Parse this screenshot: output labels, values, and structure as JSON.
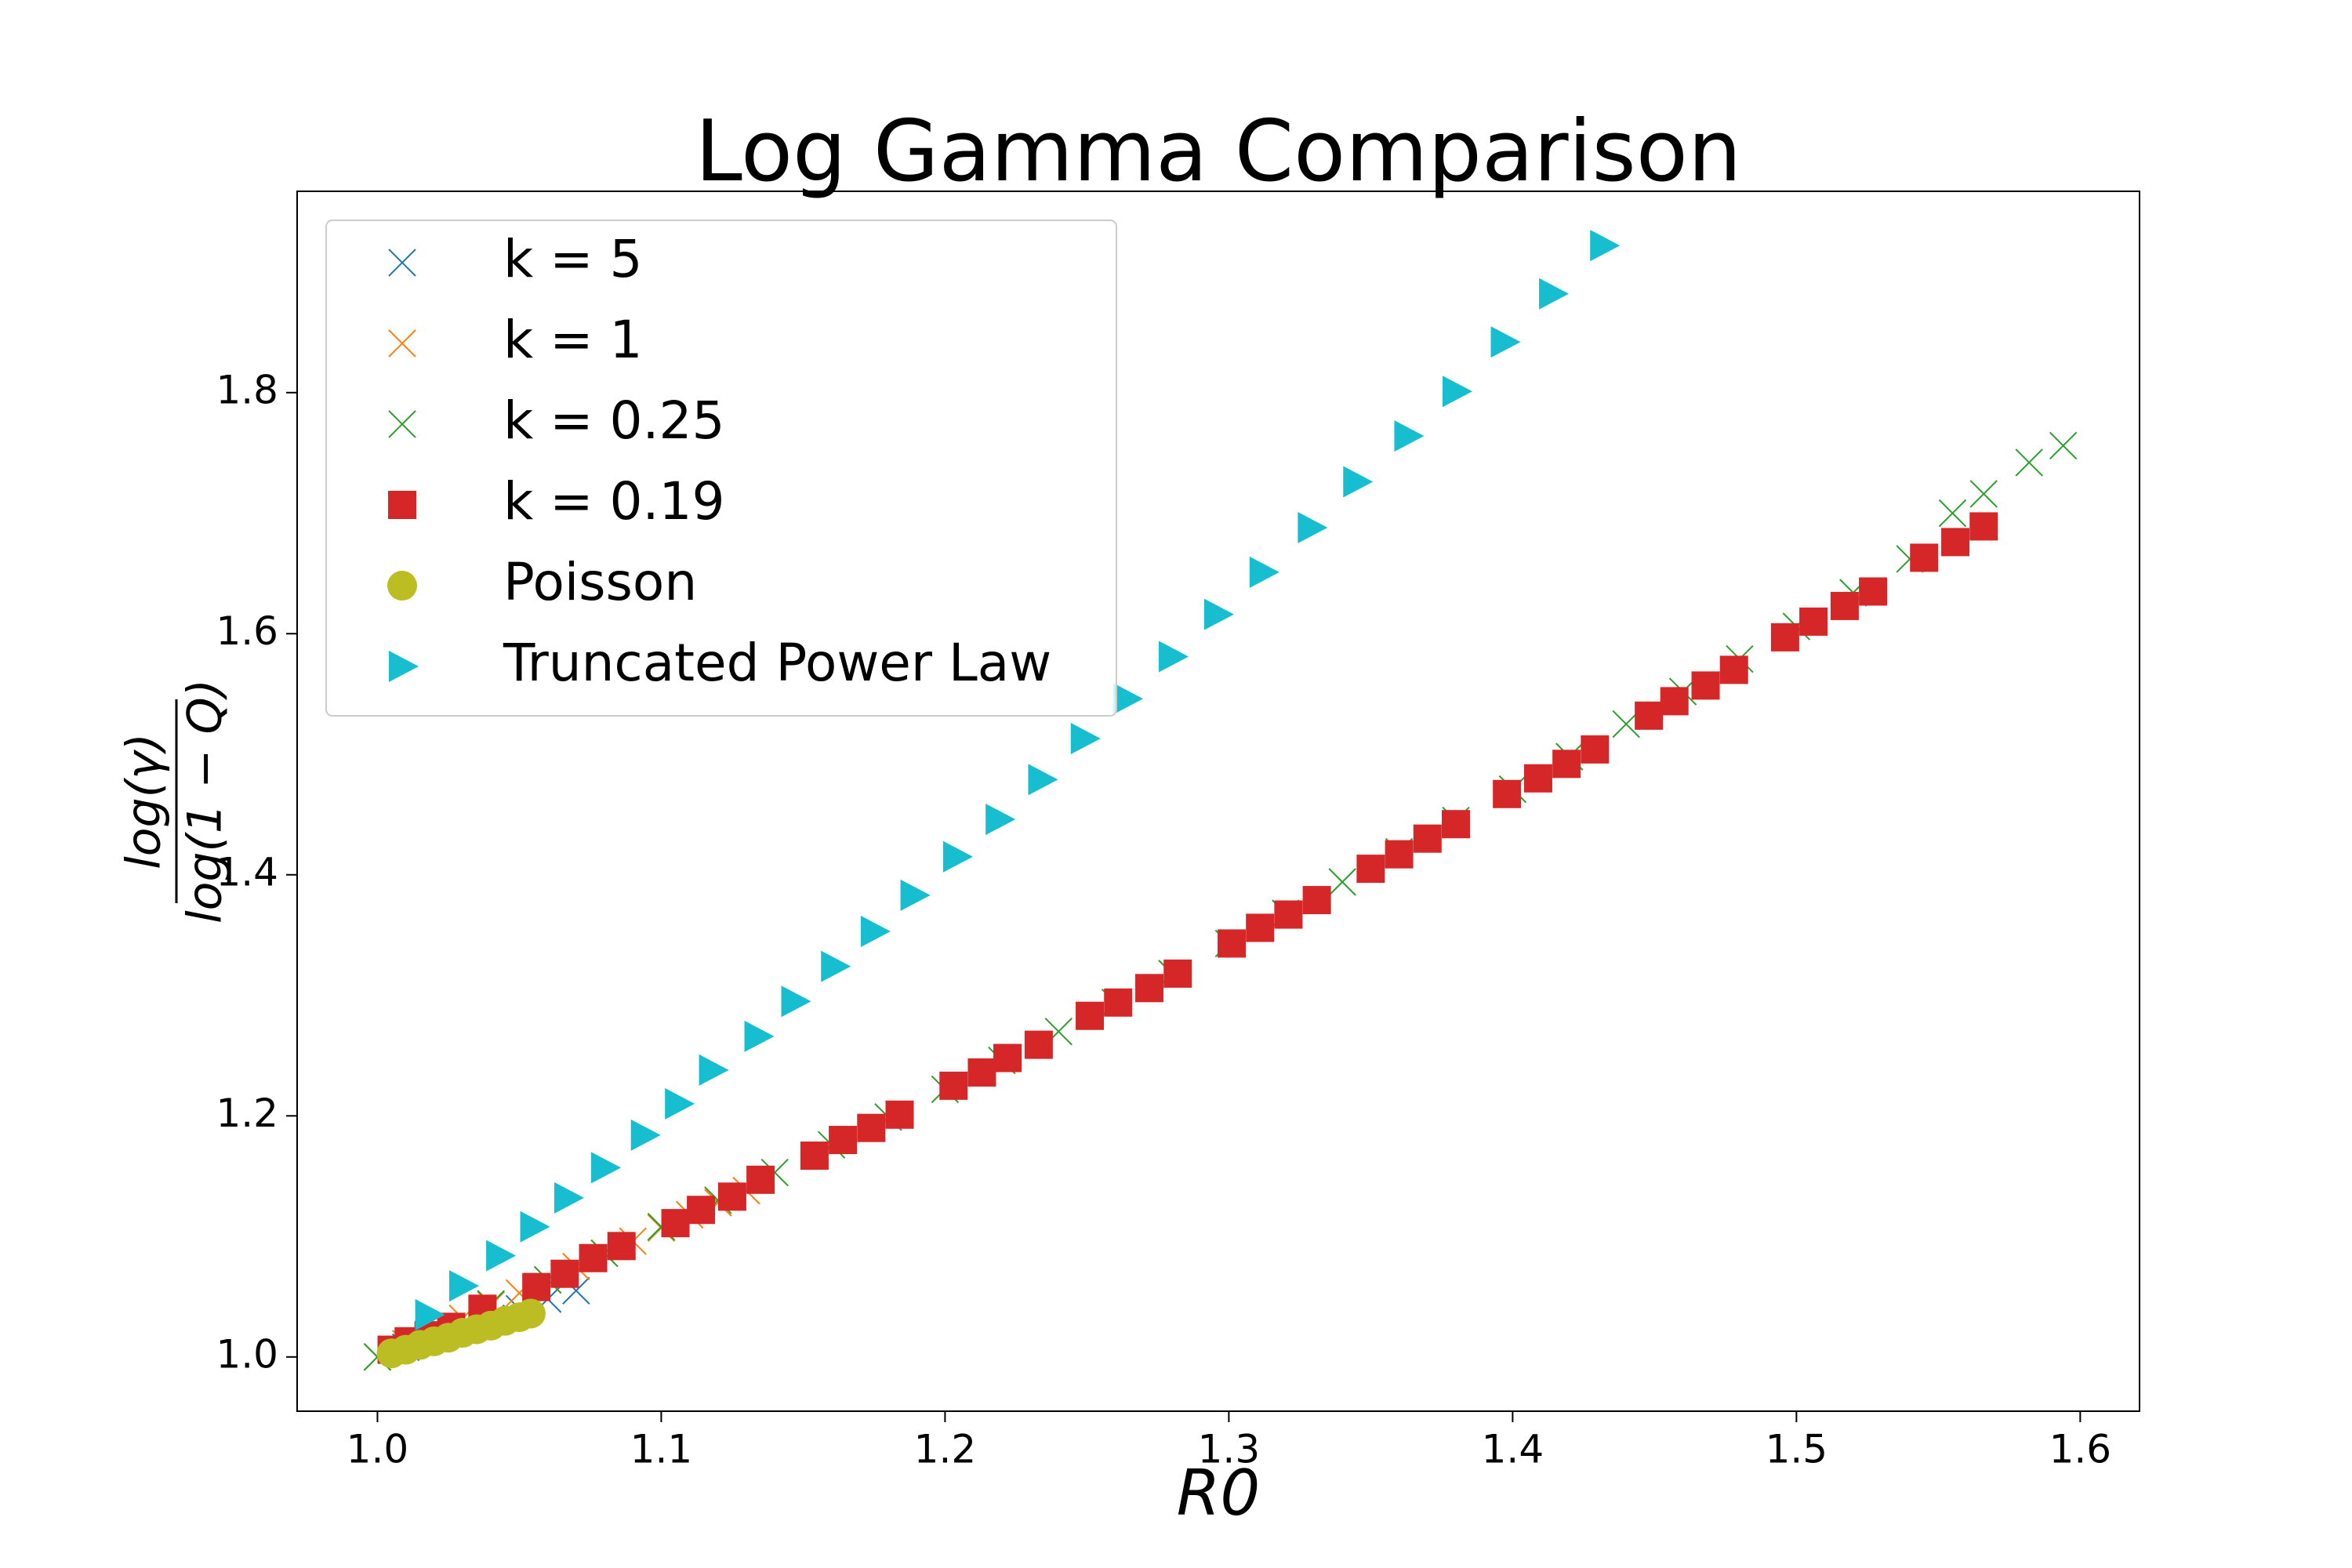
{
  "chart_data": {
    "type": "scatter",
    "title": "Log Gamma Comparison",
    "xlabel": "R0",
    "ylabel": {
      "numerator": "log(γ)",
      "denominator": "log(1 − Q)"
    },
    "xlim": [
      0.9717,
      1.6209
    ],
    "ylim": [
      0.955,
      1.967
    ],
    "xticks": [
      {
        "value": 1,
        "label": "1.0"
      },
      1.1,
      1.2,
      1.3,
      1.4,
      1.5,
      1.6
    ],
    "yticks": [
      {
        "value": 1,
        "label": "1.0"
      },
      1.2,
      1.4,
      1.6,
      1.8
    ],
    "legend": "upper left",
    "series": [
      {
        "name": "k = 5",
        "color": "#1f77b4",
        "marker": "x",
        "x": [
          1.0,
          1.01,
          1.02,
          1.03,
          1.04,
          1.05,
          1.06,
          1.07
        ],
        "values": [
          1.0,
          1.008,
          1.016,
          1.024,
          1.032,
          1.04,
          1.048,
          1.055
        ]
      },
      {
        "name": "k = 1",
        "color": "#ff7f0e",
        "marker": "x",
        "x": [
          1.0,
          1.01,
          1.02,
          1.03,
          1.04,
          1.05,
          1.06,
          1.07,
          1.08,
          1.09,
          1.1,
          1.11,
          1.12,
          1.13
        ],
        "values": [
          1.0,
          1.011,
          1.021,
          1.032,
          1.043,
          1.053,
          1.064,
          1.075,
          1.086,
          1.096,
          1.107,
          1.118,
          1.128,
          1.138
        ]
      },
      {
        "name": "k = 0.25",
        "color": "#2ca02c",
        "marker": "x",
        "x": [
          1.0,
          1.02,
          1.04,
          1.06,
          1.08,
          1.1,
          1.12,
          1.14,
          1.16,
          1.18,
          1.2,
          1.22,
          1.24,
          1.26,
          1.28,
          1.3,
          1.32,
          1.34,
          1.36,
          1.38,
          1.4,
          1.42,
          1.44,
          1.46,
          1.48,
          1.5,
          1.52,
          1.54,
          1.555,
          1.566,
          1.582,
          1.594
        ],
        "values": [
          1.0,
          1.022,
          1.044,
          1.064,
          1.086,
          1.108,
          1.13,
          1.153,
          1.176,
          1.199,
          1.222,
          1.246,
          1.27,
          1.294,
          1.318,
          1.343,
          1.368,
          1.394,
          1.419,
          1.445,
          1.471,
          1.498,
          1.525,
          1.552,
          1.579,
          1.606,
          1.634,
          1.662,
          1.7,
          1.716,
          1.742,
          1.756
        ]
      },
      {
        "name": "k = 0.19",
        "color": "#d62728",
        "marker": "square",
        "x": [
          1.005,
          1.011,
          1.018,
          1.026,
          1.037,
          1.056,
          1.066,
          1.076,
          1.086,
          1.105,
          1.114,
          1.125,
          1.135,
          1.154,
          1.164,
          1.174,
          1.184,
          1.203,
          1.213,
          1.222,
          1.233,
          1.251,
          1.261,
          1.272,
          1.282,
          1.301,
          1.311,
          1.321,
          1.331,
          1.35,
          1.36,
          1.37,
          1.38,
          1.398,
          1.409,
          1.419,
          1.429,
          1.448,
          1.457,
          1.468,
          1.478,
          1.496,
          1.506,
          1.517,
          1.527,
          1.545,
          1.556,
          1.566
        ],
        "values": [
          1.006,
          1.013,
          1.018,
          1.025,
          1.04,
          1.058,
          1.069,
          1.082,
          1.092,
          1.111,
          1.122,
          1.133,
          1.147,
          1.167,
          1.18,
          1.19,
          1.201,
          1.225,
          1.236,
          1.248,
          1.259,
          1.283,
          1.294,
          1.306,
          1.318,
          1.343,
          1.356,
          1.367,
          1.379,
          1.405,
          1.417,
          1.43,
          1.442,
          1.467,
          1.48,
          1.492,
          1.504,
          1.532,
          1.544,
          1.557,
          1.57,
          1.597,
          1.61,
          1.623,
          1.635,
          1.663,
          1.676,
          1.689
        ]
      },
      {
        "name": "Poisson",
        "color": "#bcbd22",
        "marker": "circle",
        "x": [
          1.005,
          1.01,
          1.015,
          1.02,
          1.025,
          1.03,
          1.035,
          1.04,
          1.045,
          1.05,
          1.054
        ],
        "values": [
          1.003,
          1.006,
          1.01,
          1.013,
          1.016,
          1.02,
          1.023,
          1.026,
          1.03,
          1.033,
          1.036
        ]
      },
      {
        "name": "Truncated Power Law",
        "color": "#17becf",
        "marker": "triangle-right",
        "x": [
          1.018,
          1.03,
          1.043,
          1.055,
          1.067,
          1.08,
          1.094,
          1.106,
          1.118,
          1.134,
          1.147,
          1.161,
          1.175,
          1.189,
          1.204,
          1.219,
          1.234,
          1.249,
          1.264,
          1.28,
          1.296,
          1.312,
          1.329,
          1.345,
          1.363,
          1.38,
          1.397,
          1.414,
          1.432
        ],
        "values": [
          1.035,
          1.059,
          1.084,
          1.108,
          1.132,
          1.157,
          1.184,
          1.21,
          1.238,
          1.266,
          1.295,
          1.324,
          1.353,
          1.383,
          1.415,
          1.446,
          1.479,
          1.513,
          1.546,
          1.581,
          1.616,
          1.651,
          1.688,
          1.726,
          1.764,
          1.801,
          1.842,
          1.882,
          1.922
        ]
      }
    ]
  }
}
